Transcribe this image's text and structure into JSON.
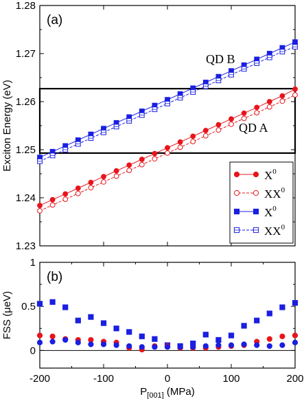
{
  "chart_data": [
    {
      "panel": "(a)",
      "type": "line",
      "xlim": [
        -200,
        200
      ],
      "ylim": [
        1.23,
        1.28
      ],
      "ylabel": "Exciton Energy (eV)",
      "xlabel": "",
      "yticks": [
        "1.23",
        "1.24",
        "1.25",
        "1.26",
        "1.27",
        "1.28"
      ],
      "x": [
        -200,
        -180,
        -160,
        -140,
        -120,
        -100,
        -80,
        -60,
        -40,
        -20,
        0,
        20,
        40,
        60,
        80,
        100,
        120,
        140,
        160,
        180,
        200
      ],
      "series": [
        {
          "group": "QD A",
          "marker": "circle-filled",
          "dash": false,
          "color": "#e8141b",
          "values": [
            1.2384,
            1.2396,
            1.2408,
            1.242,
            1.2432,
            1.2444,
            1.2456,
            1.2468,
            1.248,
            1.2492,
            1.2504,
            1.2516,
            1.2528,
            1.254,
            1.2552,
            1.2564,
            1.2576,
            1.2588,
            1.26,
            1.2612,
            1.2626
          ]
        },
        {
          "group": "QD A",
          "marker": "circle-open",
          "dash": true,
          "color": "#e8141b",
          "values": [
            1.2373,
            1.2385,
            1.2397,
            1.2409,
            1.2421,
            1.2433,
            1.2445,
            1.2457,
            1.2469,
            1.2481,
            1.2493,
            1.2505,
            1.2517,
            1.2529,
            1.2541,
            1.2553,
            1.2565,
            1.2577,
            1.2589,
            1.2601,
            1.2614
          ]
        },
        {
          "group": "QD B",
          "marker": "square-filled",
          "dash": false,
          "color": "#1a1fe0",
          "values": [
            1.2484,
            1.2496,
            1.2508,
            1.252,
            1.2532,
            1.2544,
            1.2556,
            1.2568,
            1.258,
            1.2592,
            1.2604,
            1.2616,
            1.2628,
            1.264,
            1.2652,
            1.2664,
            1.2676,
            1.2688,
            1.27,
            1.2712,
            1.2724
          ]
        },
        {
          "group": "QD B",
          "marker": "square-open",
          "dash": true,
          "color": "#1a1fe0",
          "values": [
            1.2476,
            1.2488,
            1.25,
            1.2512,
            1.2524,
            1.2536,
            1.2548,
            1.256,
            1.2572,
            1.2584,
            1.2596,
            1.2608,
            1.262,
            1.2632,
            1.2644,
            1.2656,
            1.2668,
            1.268,
            1.2692,
            1.2704,
            1.2714
          ]
        }
      ],
      "legend": {
        "placement": "lower-right",
        "entries": [
          {
            "base": "X",
            "sup": "0",
            "marker": "circle-filled",
            "dash": false,
            "color": "#e8141b"
          },
          {
            "base": "XX",
            "sup": "0",
            "marker": "circle-open",
            "dash": true,
            "color": "#e8141b"
          },
          {
            "base": "X",
            "sup": "0",
            "marker": "square-filled",
            "dash": false,
            "color": "#1a1fe0"
          },
          {
            "base": "XX",
            "sup": "0",
            "marker": "square-open",
            "dash": true,
            "color": "#1a1fe0"
          }
        ]
      },
      "annotations": [
        "QD B",
        "QD A"
      ],
      "highlight_box": {
        "x": [
          -200,
          200
        ],
        "y": [
          1.2493,
          1.2627
        ]
      }
    },
    {
      "panel": "(b)",
      "type": "scatter",
      "xlim": [
        -200,
        200
      ],
      "ylim": [
        -0.2,
        1.0
      ],
      "ylabel": "FSS (μeV)",
      "xlabel": "P[001] (MPa)",
      "xlabel_main": "P",
      "xlabel_sub": "[001]",
      "xlabel_unit": " (MPa)",
      "yticks": [
        "0",
        "0.5",
        "1"
      ],
      "xticks": [
        "-200",
        "-100",
        "0",
        "100",
        "200"
      ],
      "zero_line": true,
      "series": [
        {
          "marker": "square",
          "color": "#1a1fe0",
          "points": [
            [
              -200,
              0.53
            ],
            [
              -180,
              0.55
            ],
            [
              -160,
              0.49
            ],
            [
              -140,
              0.34
            ],
            [
              -120,
              0.38
            ],
            [
              -100,
              0.31
            ],
            [
              -80,
              0.25
            ],
            [
              -60,
              0.21
            ],
            [
              -40,
              0.16
            ],
            [
              -20,
              0.13
            ],
            [
              0,
              0.06
            ],
            [
              20,
              0.05
            ],
            [
              40,
              0.08
            ],
            [
              60,
              0.18
            ],
            [
              80,
              0.12
            ],
            [
              100,
              0.17
            ],
            [
              120,
              0.28
            ],
            [
              140,
              0.34
            ],
            [
              160,
              0.42
            ],
            [
              180,
              0.49
            ],
            [
              200,
              0.54
            ]
          ]
        },
        {
          "marker": "circle",
          "color": "#e8141b",
          "points": [
            [
              -200,
              0.17
            ],
            [
              -180,
              0.16
            ],
            [
              -160,
              0.13
            ],
            [
              -140,
              0.12
            ],
            [
              -120,
              0.12
            ],
            [
              -100,
              0.1
            ],
            [
              -80,
              0.09
            ],
            [
              -60,
              0.03
            ],
            [
              -40,
              0.01
            ],
            [
              -20,
              0.05
            ],
            [
              0,
              0.05
            ],
            [
              20,
              0.03
            ],
            [
              40,
              0.03
            ],
            [
              60,
              0.03
            ],
            [
              80,
              0.04
            ],
            [
              100,
              0.05
            ],
            [
              120,
              0.06
            ],
            [
              140,
              0.1
            ],
            [
              160,
              0.13
            ],
            [
              180,
              0.16
            ],
            [
              200,
              0.17
            ]
          ]
        },
        {
          "marker": "circle",
          "color": "#1a1fe0",
          "points": [
            [
              -200,
              0.09
            ],
            [
              -180,
              0.1
            ],
            [
              -160,
              0.12
            ],
            [
              -140,
              0.09
            ],
            [
              -120,
              0.07
            ],
            [
              -100,
              0.07
            ],
            [
              -80,
              0.06
            ],
            [
              -60,
              0.05
            ],
            [
              -40,
              0.04
            ],
            [
              -20,
              0.04
            ],
            [
              0,
              0.04
            ],
            [
              20,
              0.04
            ],
            [
              40,
              0.04
            ],
            [
              60,
              0.05
            ],
            [
              80,
              0.06
            ],
            [
              100,
              0.06
            ],
            [
              120,
              0.07
            ],
            [
              140,
              0.06
            ],
            [
              160,
              0.05
            ],
            [
              180,
              0.06
            ],
            [
              200,
              0.09
            ]
          ]
        }
      ]
    }
  ]
}
